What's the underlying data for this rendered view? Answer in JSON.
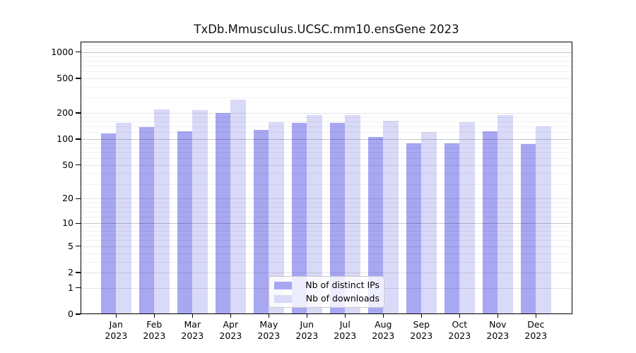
{
  "chart_data": {
    "type": "bar",
    "title": "TxDb.Mmusculus.UCSC.mm10.ensGene 2023",
    "categories": [
      "Jan",
      "Feb",
      "Mar",
      "Apr",
      "May",
      "Jun",
      "Jul",
      "Aug",
      "Sep",
      "Oct",
      "Nov",
      "Dec"
    ],
    "year": "2023",
    "series": [
      {
        "name": "Nb of distinct IPs",
        "color": "#a7a7f2",
        "values": [
          116,
          139,
          124,
          200,
          129,
          153,
          154,
          106,
          90,
          90,
          124,
          88
        ]
      },
      {
        "name": "Nb of downloads",
        "color": "#d9d9f8",
        "values": [
          155,
          221,
          216,
          285,
          157,
          188,
          190,
          163,
          121,
          157,
          189,
          140
        ]
      }
    ],
    "yscale": "log10(1+x)",
    "ylim": [
      0,
      1311
    ],
    "yaxis": {
      "ticks": [
        0,
        1,
        2,
        5,
        10,
        20,
        50,
        100,
        200,
        500,
        1000
      ],
      "emphasized_ticks": [
        10,
        100,
        1000
      ],
      "minor_gridlines": [
        3,
        4,
        6,
        7,
        8,
        9,
        12,
        14,
        16,
        18,
        30,
        40,
        60,
        70,
        80,
        90,
        120,
        140,
        160,
        180,
        300,
        400,
        600,
        700,
        800,
        900,
        1100,
        1200
      ]
    },
    "grid": true,
    "legend_position": "bottom-center"
  }
}
